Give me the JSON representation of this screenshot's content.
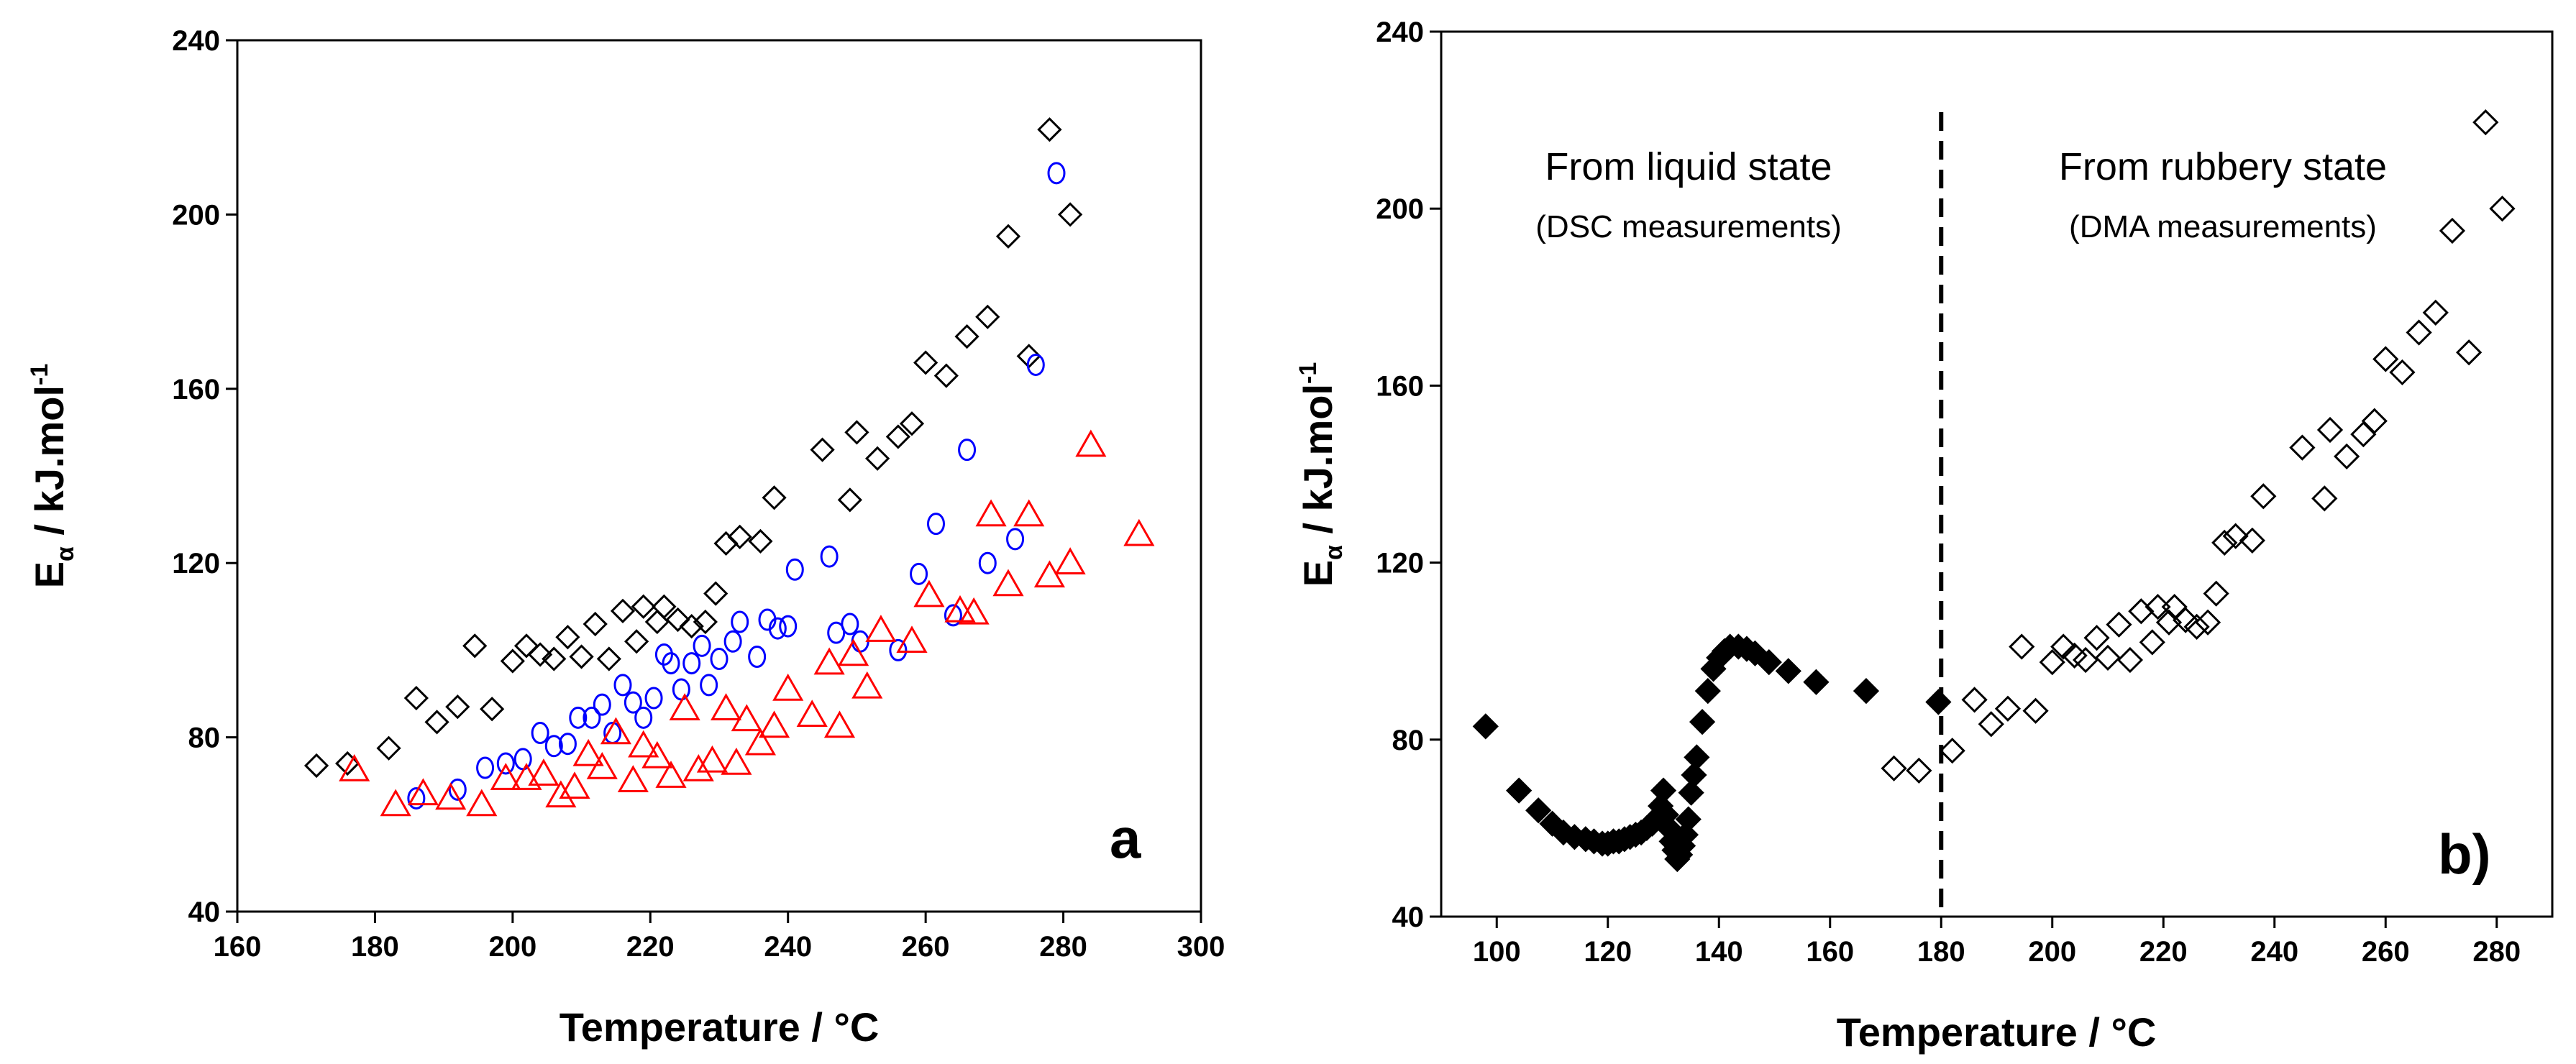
{
  "chart_data": [
    {
      "type": "scatter",
      "panel_label": "a",
      "xlabel": "Temperature / °C",
      "ylabel": {
        "main": "E",
        "sub": "α",
        "rest": " / kJ.mol",
        "sup": "-1"
      },
      "xlim": [
        160,
        300
      ],
      "ylim": [
        40,
        240
      ],
      "xticks": [
        160,
        180,
        200,
        220,
        240,
        260,
        280,
        300
      ],
      "yticks": [
        40,
        80,
        120,
        160,
        200,
        240
      ],
      "grid": false,
      "series": [
        {
          "name": "black diamonds",
          "marker": "diamond-open",
          "color": "#000000",
          "x": [
            171.5,
            176,
            182,
            186,
            189,
            192,
            194.5,
            197,
            200,
            202,
            204,
            206,
            208,
            210,
            212,
            214,
            216,
            218,
            219,
            221,
            222,
            224,
            226,
            228,
            229.5,
            231,
            233,
            236,
            238,
            245,
            249,
            250,
            253,
            256,
            258,
            260,
            263,
            266,
            269,
            272,
            275,
            278,
            281
          ],
          "y": [
            73.5,
            74,
            77.5,
            89,
            83.5,
            87,
            101,
            86.5,
            97.5,
            101,
            99,
            98,
            103,
            98.5,
            106,
            98,
            109,
            102,
            110,
            106.5,
            110,
            107,
            105.5,
            106.5,
            113,
            124.5,
            126,
            125,
            135,
            146,
            134.5,
            150,
            144,
            149,
            152,
            166,
            163,
            172,
            176.5,
            195,
            167.5,
            219.5,
            200
          ]
        },
        {
          "name": "blue circles",
          "marker": "circle-open",
          "color": "#0000ff",
          "x": [
            186,
            192,
            196,
            199,
            201.5,
            204,
            206,
            208,
            209.5,
            211.5,
            213,
            214.5,
            216,
            217.5,
            219,
            220.5,
            222,
            223,
            224.5,
            226,
            227.5,
            228.5,
            230,
            232,
            233,
            235.5,
            237,
            238.5,
            240,
            241,
            246,
            247,
            249,
            250.5,
            256,
            259,
            261.5,
            264,
            266,
            269,
            273,
            276,
            279
          ],
          "y": [
            66,
            68,
            73,
            74,
            75,
            81,
            78,
            78.5,
            84.5,
            84.5,
            87.5,
            81,
            92,
            88,
            84.5,
            89,
            99,
            97,
            91,
            97,
            101,
            92,
            98,
            102,
            106.5,
            98.5,
            107,
            105,
            105.5,
            118.5,
            121.5,
            104,
            106,
            102,
            100,
            117.5,
            129,
            108,
            146,
            120,
            125.5,
            165.5,
            209.5
          ]
        },
        {
          "name": "red triangles",
          "marker": "triangle-open",
          "color": "#ff0000",
          "x": [
            177,
            183,
            187,
            191,
            195.5,
            199,
            202,
            204.5,
            207,
            209,
            211,
            213,
            215,
            217.5,
            219,
            221,
            223,
            225,
            227,
            229,
            231,
            232.5,
            234,
            236,
            238,
            240,
            243.5,
            246,
            247.5,
            249.5,
            251.5,
            253.5,
            258,
            260.5,
            265,
            267,
            269.5,
            272,
            275,
            278,
            281,
            284,
            291
          ],
          "y": [
            72.5,
            64.5,
            67,
            66,
            64.5,
            70.5,
            70.5,
            71.5,
            66.5,
            68.5,
            76,
            73,
            81,
            70,
            78,
            75.5,
            71,
            86.5,
            72.5,
            74.5,
            86.5,
            74,
            84,
            78.5,
            82.5,
            91,
            85,
            97,
            82.5,
            99,
            91.5,
            104.5,
            102,
            112.5,
            109,
            108.5,
            131,
            115,
            131,
            117,
            120,
            147,
            126.5
          ]
        }
      ]
    },
    {
      "type": "scatter",
      "panel_label": "b)",
      "xlabel": "Temperature / °C",
      "ylabel": {
        "main": "E",
        "sub": "α",
        "rest": " / kJ.mol",
        "sup": "-1"
      },
      "xlim": [
        90,
        290
      ],
      "ylim": [
        40,
        240
      ],
      "xticks": [
        100,
        120,
        140,
        160,
        180,
        200,
        220,
        240,
        260,
        280
      ],
      "yticks": [
        40,
        80,
        120,
        160,
        200,
        240
      ],
      "grid": false,
      "divider_x": 180,
      "annotations": [
        {
          "title": "From liquid state",
          "subtitle": "(DSC measurements)",
          "region": "left"
        },
        {
          "title": "From rubbery state",
          "subtitle": "(DMA measurements)",
          "region": "right"
        }
      ],
      "series": [
        {
          "name": "DSC (filled diamonds)",
          "marker": "diamond-filled",
          "color": "#000000",
          "x": [
            98,
            104,
            107.5,
            110,
            112,
            114,
            116,
            117.5,
            119,
            120,
            121,
            122,
            123,
            124,
            125,
            126,
            127,
            128,
            129,
            129.5,
            130,
            130.5,
            131,
            131.5,
            132,
            132.5,
            133,
            133.5,
            134,
            134.5,
            135,
            135.5,
            136,
            137,
            138,
            139,
            140,
            141,
            142,
            143.5,
            145,
            146.5,
            149,
            152.5,
            157.5,
            166.5,
            179.5
          ],
          "y": [
            83,
            68.5,
            64,
            61,
            59,
            58,
            57.5,
            57,
            56.5,
            56.5,
            57,
            57,
            57.5,
            58,
            58.5,
            59,
            60,
            61,
            62.5,
            65,
            68.5,
            63,
            60,
            57,
            55,
            53,
            54,
            56,
            58.5,
            62,
            68,
            72,
            76,
            84,
            91,
            96,
            98.5,
            100,
            101,
            101,
            100.5,
            99.5,
            97.5,
            95.5,
            93,
            91,
            88.5
          ]
        },
        {
          "name": "DMA (open diamonds)",
          "marker": "diamond-open",
          "color": "#000000",
          "x": [
            171.5,
            176,
            182,
            186,
            189,
            192,
            194.5,
            197,
            200,
            202,
            204,
            206,
            208,
            210,
            212,
            214,
            216,
            218,
            219,
            221,
            222,
            224,
            226,
            228,
            229.5,
            231,
            233,
            236,
            238,
            245,
            249,
            250,
            253,
            256,
            258,
            260,
            263,
            266,
            269,
            272,
            275,
            278,
            281
          ],
          "y": [
            73.5,
            73,
            77.5,
            89,
            83.5,
            87,
            101,
            86.5,
            97.5,
            101,
            99,
            98,
            103,
            98.5,
            106,
            98,
            109,
            102,
            110,
            106.5,
            110,
            107,
            105.5,
            106.5,
            113,
            124.5,
            126,
            125,
            135,
            146,
            134.5,
            150,
            144,
            149,
            152,
            166,
            163,
            172,
            176.5,
            195,
            167.5,
            219.5,
            200
          ]
        }
      ]
    }
  ]
}
